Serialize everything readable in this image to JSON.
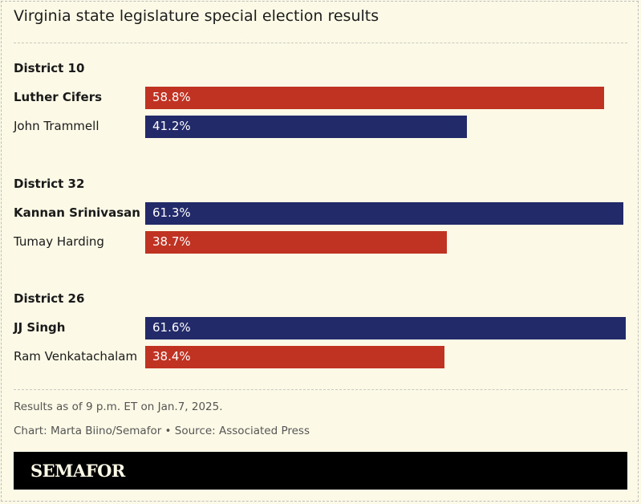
{
  "chart_data": {
    "type": "bar",
    "orientation": "horizontal",
    "title": "Virginia state legislature special election results",
    "groups": [
      {
        "label": "District 10",
        "candidates": [
          {
            "name": "Luther Cifers",
            "value": 58.8,
            "label": "58.8%",
            "party_color": "#c03222",
            "winner": true
          },
          {
            "name": "John Trammell",
            "value": 41.2,
            "label": "41.2%",
            "party_color": "#222a6a",
            "winner": false
          }
        ]
      },
      {
        "label": "District 32",
        "candidates": [
          {
            "name": "Kannan Srinivasan",
            "value": 61.3,
            "label": "61.3%",
            "party_color": "#222a6a",
            "winner": true
          },
          {
            "name": "Tumay Harding",
            "value": 38.7,
            "label": "38.7%",
            "party_color": "#c03222",
            "winner": false
          }
        ]
      },
      {
        "label": "District 26",
        "candidates": [
          {
            "name": "JJ Singh",
            "value": 61.6,
            "label": "61.6%",
            "party_color": "#222a6a",
            "winner": true
          },
          {
            "name": "Ram Venkatachalam",
            "value": 38.4,
            "label": "38.4%",
            "party_color": "#c03222",
            "winner": false
          }
        ]
      }
    ],
    "xlim": [
      0,
      61.6
    ],
    "grid": false
  },
  "footer": {
    "note": "Results as of 9 p.m. ET on Jan.7, 2025.",
    "credit": "Chart: Marta Biino/Semafor • Source: Associated Press"
  },
  "brand": {
    "logo": "SEMAFOR"
  },
  "colors": {
    "background": "#fcf9e6",
    "republican": "#c03222",
    "democrat": "#222a6a"
  }
}
